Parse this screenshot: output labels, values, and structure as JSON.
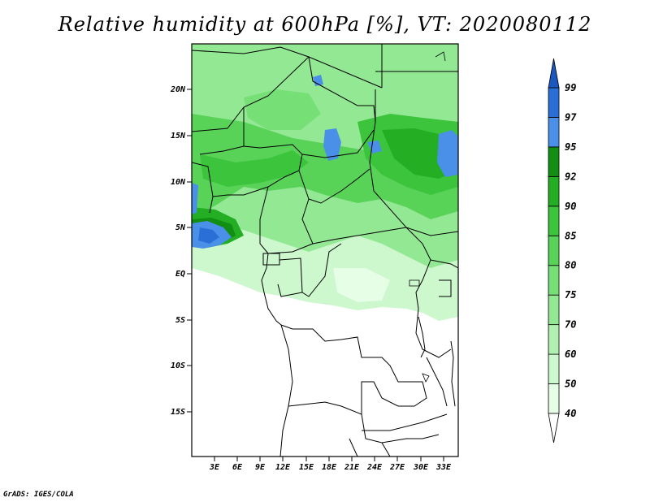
{
  "title": "Relative humidity at 600hPa [%], VT: 2020080112",
  "footer": "GrADS: IGES/COLA",
  "map": {
    "lat_labels": [
      "20N",
      "15N",
      "10N",
      "5N",
      "EQ",
      "5S",
      "10S",
      "15S"
    ],
    "lon_labels": [
      "3E",
      "6E",
      "9E",
      "12E",
      "15E",
      "18E",
      "21E",
      "24E",
      "27E",
      "30E",
      "33E"
    ]
  },
  "colorbar": {
    "levels": [
      "40",
      "50",
      "60",
      "70",
      "75",
      "80",
      "85",
      "90",
      "92",
      "95",
      "97",
      "99"
    ],
    "colors": [
      "#ffffff",
      "#e6fde6",
      "#cdf7cd",
      "#b0f0b0",
      "#93e893",
      "#76df76",
      "#58d358",
      "#3cc43c",
      "#23ae23",
      "#128f12",
      "#4a90e8",
      "#2a6fd6",
      "#1a58c0"
    ]
  }
}
